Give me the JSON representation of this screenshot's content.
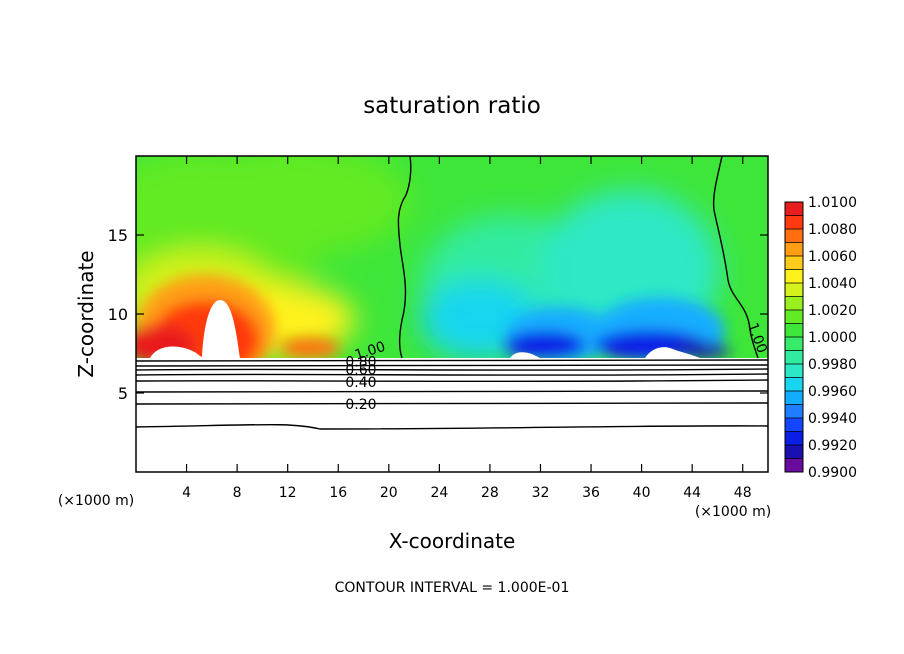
{
  "chart_data": {
    "type": "heatmap",
    "title": "saturation ratio",
    "xlabel": "X-coordinate",
    "ylabel": "Z-coordinate",
    "x_unit_left": "(×1000 m)",
    "x_unit_right": "(×1000 m)",
    "footer": "CONTOUR INTERVAL = 1.000E-01",
    "xlim": [
      0,
      50
    ],
    "ylim": [
      0,
      20
    ],
    "x_ticks": [
      4,
      8,
      12,
      16,
      20,
      24,
      28,
      32,
      36,
      40,
      44,
      48
    ],
    "y_ticks": [
      5,
      10,
      15
    ],
    "colorbar": {
      "levels": [
        0.99,
        0.991,
        0.992,
        0.993,
        0.994,
        0.995,
        0.996,
        0.997,
        0.998,
        0.999,
        1.0,
        1.001,
        1.002,
        1.003,
        1.004,
        1.005,
        1.006,
        1.007,
        1.008,
        1.009,
        1.01
      ],
      "tick_labels": [
        "0.9900",
        "0.9920",
        "0.9940",
        "0.9960",
        "0.9980",
        "1.0000",
        "1.0020",
        "1.0040",
        "1.0060",
        "1.0080",
        "1.0100"
      ],
      "colors": [
        "#6a0a9e",
        "#1a0fb0",
        "#0a1ee6",
        "#1446ff",
        "#1f7dff",
        "#13adff",
        "#18d6f0",
        "#2de8c6",
        "#30eba0",
        "#38ec6a",
        "#3ee63a",
        "#62ea24",
        "#9aef1e",
        "#d5f21c",
        "#fff21c",
        "#ffcc1c",
        "#ff9e14",
        "#ff6e10",
        "#ff3a10",
        "#e81e1e",
        "#f08a92"
      ]
    },
    "contour_labels": [
      {
        "text": "1.00",
        "x": 18.5,
        "y": 7.7
      },
      {
        "text": "1.00",
        "x": 49.2,
        "y": 8.5
      },
      {
        "text": "0.80",
        "x": 17.8,
        "y": 7.0
      },
      {
        "text": "0.60",
        "x": 17.8,
        "y": 6.5
      },
      {
        "text": "0.40",
        "x": 17.8,
        "y": 5.7
      },
      {
        "text": "0.20",
        "x": 17.8,
        "y": 4.3
      }
    ],
    "features": {
      "white_region_above": 7.3,
      "warm_blob_center_x": 6.5,
      "cold_blob_center_x": 38
    }
  }
}
